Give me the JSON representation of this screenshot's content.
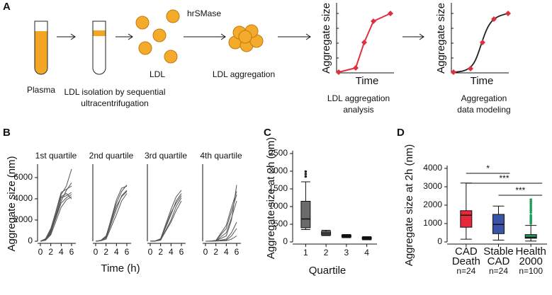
{
  "panel_labels": [
    "A",
    "B",
    "C",
    "D"
  ],
  "diagram": {
    "plasma": "Plasma",
    "isolation": [
      "LDL isolation by sequential",
      "ultracentrifugation"
    ],
    "ldl": "LDL",
    "enzyme": "hrSMase",
    "aggregation": "LDL aggregation",
    "plot_y_label": "Aggregate size",
    "plot_x_label": "Time",
    "analysis": [
      "LDL aggregation",
      "analysis"
    ],
    "modeling": [
      "Aggregation",
      "data modeling"
    ]
  },
  "chart_data": [
    {
      "type": "line",
      "title": "1st quartile",
      "y_label": "Aggregate size (nm)",
      "x_label": "Time (h)",
      "x": [
        0,
        1,
        2,
        4,
        5,
        6
      ],
      "xlim": [
        0,
        6
      ],
      "xticks": [
        0,
        2,
        4,
        6
      ],
      "ylim": [
        0,
        7000
      ],
      "yticks": [
        0,
        2000,
        4000,
        6000
      ],
      "series": [
        {
          "color": "#555555",
          "values": [
            0,
            200,
            1000,
            4100,
            4300,
            4600
          ]
        },
        {
          "color": "#555555",
          "values": [
            0,
            150,
            900,
            3800,
            4800,
            5500
          ]
        },
        {
          "color": "#555555",
          "values": [
            0,
            100,
            700,
            4200,
            4500,
            4000
          ]
        },
        {
          "color": "#555555",
          "values": [
            0,
            250,
            1200,
            4400,
            5200,
            6800
          ]
        },
        {
          "color": "#555555",
          "values": [
            0,
            120,
            800,
            3600,
            4100,
            4400
          ]
        },
        {
          "color": "#555555",
          "values": [
            0,
            180,
            1100,
            4600,
            4900,
            5200
          ]
        },
        {
          "color": "#555555",
          "values": [
            0,
            90,
            600,
            3200,
            3900,
            4200
          ]
        }
      ]
    },
    {
      "type": "line",
      "title": "2nd quartile",
      "x": [
        0,
        1,
        2,
        4,
        5,
        6
      ],
      "xlim": [
        0,
        6
      ],
      "xticks": [
        0,
        2,
        4,
        6
      ],
      "ylim": [
        0,
        7000
      ],
      "series": [
        {
          "color": "#555555",
          "values": [
            0,
            50,
            300,
            3000,
            4300,
            4800
          ]
        },
        {
          "color": "#555555",
          "values": [
            0,
            80,
            500,
            3600,
            4700,
            5300
          ]
        },
        {
          "color": "#555555",
          "values": [
            0,
            40,
            200,
            2500,
            3800,
            4500
          ]
        },
        {
          "color": "#555555",
          "values": [
            0,
            60,
            400,
            3900,
            5000,
            5200
          ]
        },
        {
          "color": "#555555",
          "values": [
            0,
            70,
            450,
            3300,
            4200,
            4700
          ]
        }
      ]
    },
    {
      "type": "line",
      "title": "3rd quartile",
      "x": [
        0,
        1,
        2,
        4,
        5,
        6
      ],
      "xlim": [
        0,
        6
      ],
      "xticks": [
        0,
        2,
        4,
        6
      ],
      "ylim": [
        0,
        7000
      ],
      "series": [
        {
          "color": "#555555",
          "values": [
            0,
            30,
            150,
            2500,
            3800,
            4500
          ]
        },
        {
          "color": "#555555",
          "values": [
            0,
            40,
            250,
            3000,
            4200,
            4800
          ]
        },
        {
          "color": "#555555",
          "values": [
            0,
            20,
            100,
            2000,
            3300,
            4100
          ]
        },
        {
          "color": "#555555",
          "values": [
            0,
            35,
            200,
            2700,
            3600,
            4300
          ]
        },
        {
          "color": "#555555",
          "values": [
            0,
            25,
            120,
            1800,
            2900,
            3800
          ]
        }
      ]
    },
    {
      "type": "line",
      "title": "4th quartile",
      "x": [
        0,
        1,
        2,
        4,
        5,
        6
      ],
      "xlim": [
        0,
        6
      ],
      "xticks": [
        0,
        2,
        4,
        6
      ],
      "ylim": [
        0,
        7000
      ],
      "series": [
        {
          "color": "#555555",
          "values": [
            0,
            10,
            50,
            500,
            2000,
            5300
          ]
        },
        {
          "color": "#555555",
          "values": [
            0,
            15,
            80,
            1200,
            2800,
            4400
          ]
        },
        {
          "color": "#555555",
          "values": [
            0,
            5,
            30,
            200,
            800,
            1800
          ]
        },
        {
          "color": "#555555",
          "values": [
            0,
            10,
            60,
            800,
            2200,
            3800
          ]
        },
        {
          "color": "#555555",
          "values": [
            0,
            8,
            40,
            100,
            500,
            1200
          ]
        },
        {
          "color": "#555555",
          "values": [
            0,
            12,
            70,
            1500,
            3200,
            4700
          ]
        },
        {
          "color": "#555555",
          "values": [
            0,
            5,
            20,
            50,
            200,
            500
          ]
        }
      ]
    },
    {
      "type": "box",
      "categories": [
        "1",
        "2",
        "3",
        "4"
      ],
      "x_label": "Quartile",
      "y_label": "Aggregate size at 2h (nm)",
      "ylim": [
        0,
        2500
      ],
      "yticks": [
        0,
        500,
        1000,
        1500,
        2000,
        2500
      ],
      "colors": [
        "#6b6b6b",
        "#6b6b6b",
        "#6b6b6b",
        "#6b6b6b"
      ],
      "flier_color": "#222222",
      "boxes": [
        {
          "whislo": 350,
          "q1": 400,
          "med": 650,
          "q3": 1150,
          "whishi": 1700,
          "fliers": [
            1850,
            1920,
            1990
          ]
        },
        {
          "whislo": 180,
          "q1": 200,
          "med": 250,
          "q3": 300,
          "whishi": 330,
          "fliers": []
        },
        {
          "whislo": 120,
          "q1": 140,
          "med": 165,
          "q3": 190,
          "whishi": 210,
          "fliers": []
        },
        {
          "whislo": 60,
          "q1": 80,
          "med": 105,
          "q3": 130,
          "whishi": 150,
          "fliers": []
        }
      ]
    },
    {
      "type": "box",
      "categories": [
        [
          "CAD",
          "Death"
        ],
        [
          "Stable",
          "CAD"
        ],
        [
          "Health",
          "2000"
        ]
      ],
      "n_labels": [
        "n=24",
        "n=24",
        "n=100"
      ],
      "y_label": "Aggregate size at 2h (nm)",
      "ylim": [
        0,
        4000
      ],
      "yticks": [
        0,
        1000,
        2000,
        3000,
        4000
      ],
      "colors": [
        "#e8283a",
        "#3a55a8",
        "#1a9e5a"
      ],
      "flier_color": "#1a9e5a",
      "annotations": [
        "*",
        "***",
        "***"
      ],
      "boxes": [
        {
          "whislo": 150,
          "q1": 800,
          "med": 1450,
          "q3": 1700,
          "whishi": 3200,
          "fliers": []
        },
        {
          "whislo": 100,
          "q1": 450,
          "med": 950,
          "q3": 1500,
          "whishi": 1950,
          "fliers": []
        },
        {
          "whislo": 50,
          "q1": 200,
          "med": 250,
          "q3": 400,
          "whishi": 900,
          "fliers": [
            1000,
            1080,
            1150,
            1220,
            1300,
            1380,
            1450,
            1600,
            1700,
            1800,
            1900,
            2000,
            2100,
            2200,
            2300
          ]
        }
      ]
    }
  ]
}
